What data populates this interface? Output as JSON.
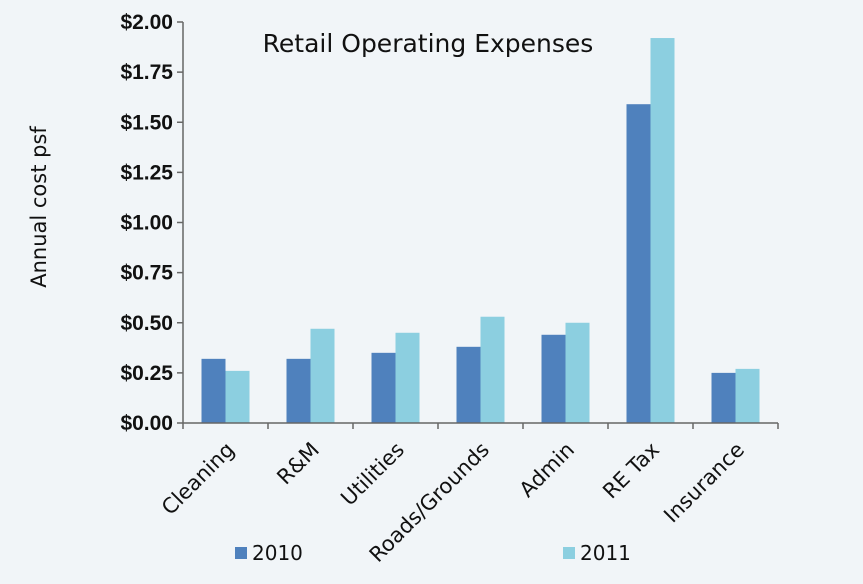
{
  "chart_data": {
    "type": "bar",
    "title": "Retail Operating Expenses",
    "ylabel": "Annual cost psf",
    "xlabel": "",
    "categories": [
      "Cleaning",
      "R&M",
      "Utilities",
      "Roads/Grounds",
      "Admin",
      "RE Tax",
      "Insurance"
    ],
    "series": [
      {
        "name": "2010",
        "values": [
          0.32,
          0.32,
          0.35,
          0.38,
          0.44,
          1.59,
          0.25
        ],
        "color": "#4f81bd"
      },
      {
        "name": "2011",
        "values": [
          0.26,
          0.47,
          0.45,
          0.53,
          0.5,
          1.92,
          0.27
        ],
        "color": "#8ccfe0"
      }
    ],
    "ylim": [
      0,
      2.0
    ],
    "yticks": [
      0,
      0.25,
      0.5,
      0.75,
      1.0,
      1.25,
      1.5,
      1.75,
      2.0
    ],
    "ytick_labels": [
      "$0.00",
      "$0.25",
      "$0.50",
      "$0.75",
      "$1.00",
      "$1.25",
      "$1.50",
      "$1.75",
      "$2.00"
    ],
    "grid": false,
    "legend_position": "bottom"
  }
}
